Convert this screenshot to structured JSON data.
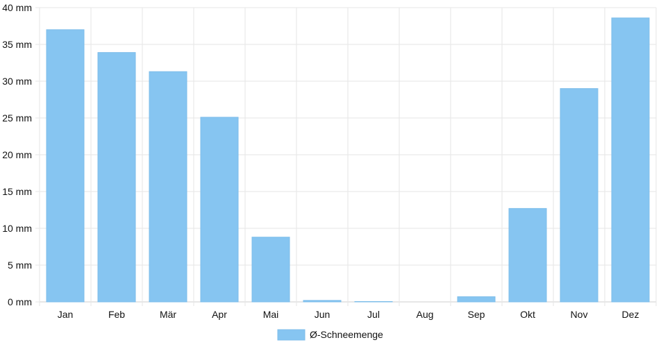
{
  "chart_data": {
    "type": "bar",
    "categories": [
      "Jan",
      "Feb",
      "Mär",
      "Apr",
      "Mai",
      "Jun",
      "Jul",
      "Aug",
      "Sep",
      "Okt",
      "Nov",
      "Dez"
    ],
    "series": [
      {
        "name": "Ø-Schneemenge",
        "values": [
          37.0,
          33.9,
          31.3,
          25.1,
          8.8,
          0.2,
          0.05,
          0,
          0.7,
          12.7,
          29.0,
          38.6
        ],
        "color": "#86c5f1"
      }
    ],
    "ylim": [
      0,
      40
    ],
    "yticks": [
      0,
      5,
      10,
      15,
      20,
      25,
      30,
      35,
      40
    ],
    "yunit": "mm",
    "grid": true,
    "legend": "bottom-center"
  }
}
